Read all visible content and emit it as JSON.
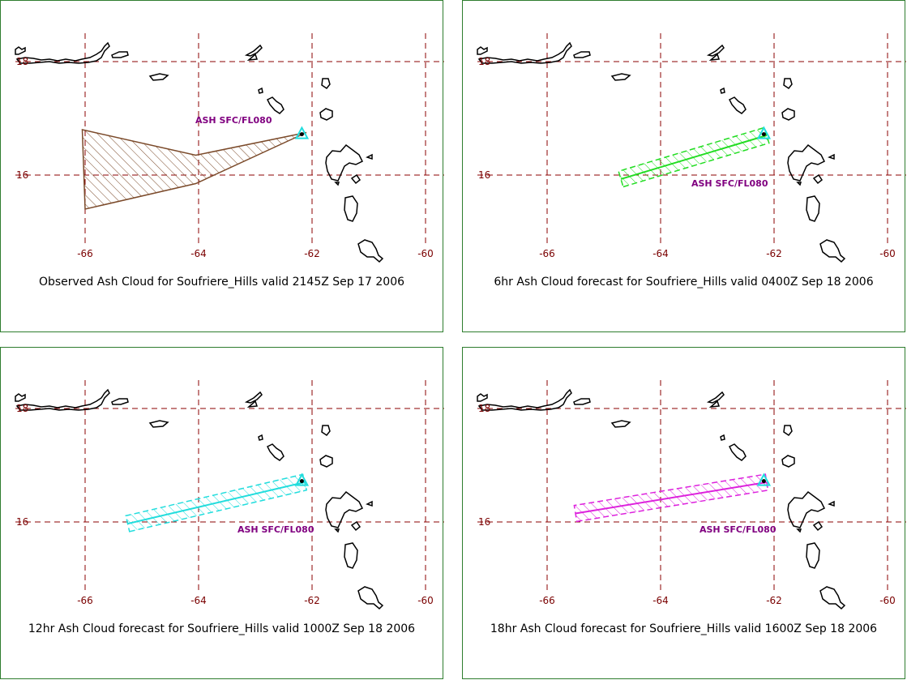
{
  "panels": [
    {
      "caption": "Observed Ash Cloud for Soufriere_Hills valid 2145Z Sep 17 2006",
      "label": "ASH SFC/FL080",
      "type": "observed",
      "color": "#7b4a2a",
      "polygon": [
        [
          -66.05,
          16.8
        ],
        [
          -64.05,
          16.35
        ],
        [
          -62.1,
          16.75
        ],
        [
          -64.05,
          15.85
        ],
        [
          -66.0,
          15.4
        ]
      ]
    },
    {
      "caption": "6hr Ash Cloud forecast for Soufriere_Hills valid 0400Z Sep 18 2006",
      "label": "ASH SFC/FL080",
      "type": "forecast",
      "color": "#22dd22",
      "axis": [
        [
          -64.7,
          15.93
        ],
        [
          -62.13,
          16.7
        ]
      ]
    },
    {
      "caption": "12hr Ash Cloud forecast for Soufriere_Hills valid 1000Z Sep 18 2006",
      "label": "ASH SFC/FL080",
      "type": "forecast",
      "color": "#22dddd",
      "axis": [
        [
          -65.25,
          15.97
        ],
        [
          -62.13,
          16.7
        ]
      ]
    },
    {
      "caption": "18hr Ash Cloud forecast for Soufriere_Hills valid 1600Z Sep 18 2006",
      "label": "ASH SFC/FL080",
      "type": "forecast",
      "color": "#dd22dd",
      "axis": [
        [
          -65.5,
          16.15
        ],
        [
          -62.13,
          16.7
        ]
      ]
    }
  ],
  "axes": {
    "lon_ticks": [
      "-66",
      "-64",
      "-62",
      "-60"
    ],
    "lat_ticks": [
      "18",
      "16"
    ],
    "lon_values": [
      -66,
      -64,
      -62,
      -60
    ],
    "lat_values": [
      18,
      16
    ]
  },
  "colors": {
    "grid": "#8b0000",
    "coast": "#000000",
    "border": "#2e7d2e",
    "volcano": "#22dddd"
  },
  "volcano": {
    "lon": -62.18,
    "lat": 16.72
  }
}
